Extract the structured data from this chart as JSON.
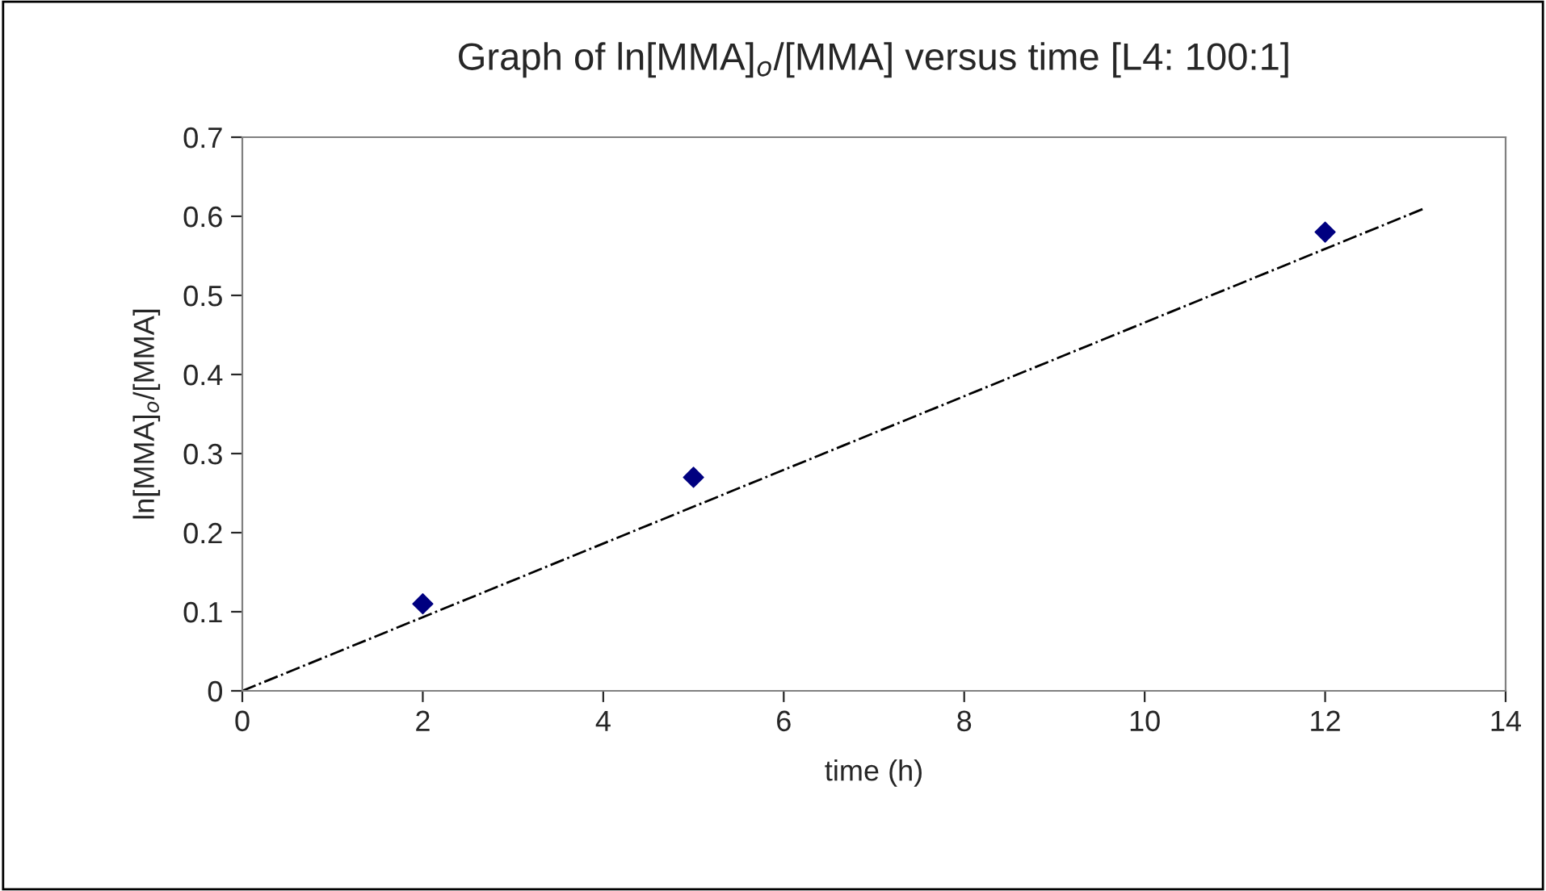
{
  "chart_data": {
    "type": "scatter",
    "title": "Graph of ln[MMA]$_{o}$/[MMA] versus time [L4: 100:1]",
    "xlabel": "time (h)",
    "ylabel": "ln[MMA]$_{o}$/[MMA]",
    "series": [
      {
        "color": "#000080",
        "marker": "diamond",
        "x": [
          2,
          5,
          12
        ],
        "values": [
          0.11,
          0.27,
          0.58
        ]
      },
      {
        "type": "line",
        "color": "#000000",
        "line_style": "dashdot",
        "marker": "none",
        "x": [
          0,
          13.1
        ],
        "values": [
          0,
          0.61
        ]
      }
    ],
    "xlim": [
      0,
      14
    ],
    "xticks": [
      0,
      2,
      4,
      6,
      8,
      10,
      12,
      14
    ],
    "ylim": [
      0,
      0.7
    ],
    "yticks": [
      0,
      0.1,
      0.2,
      0.3,
      0.4,
      0.5,
      0.6,
      0.7
    ],
    "grid": false,
    "legend": false
  }
}
